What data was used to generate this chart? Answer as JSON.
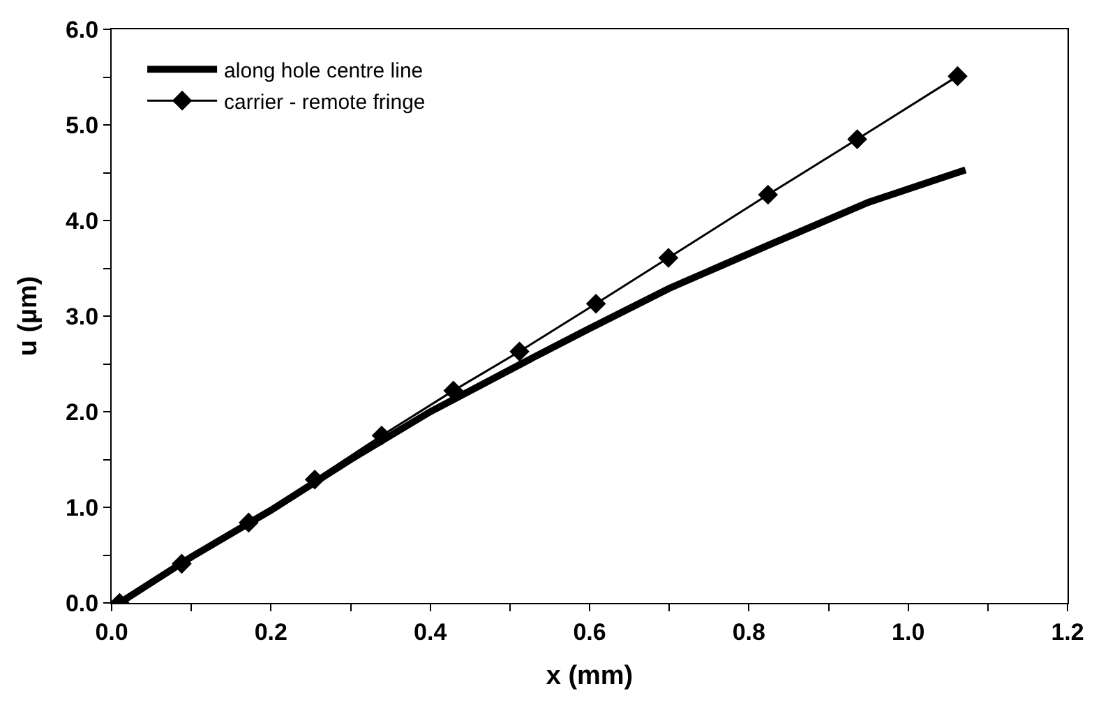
{
  "chart_data": {
    "type": "line",
    "xlabel": "x (mm)",
    "ylabel": "u (µm)",
    "xlim": [
      0,
      1.2
    ],
    "ylim": [
      0,
      6
    ],
    "xticks": [
      {
        "value": 0,
        "label": "0.0"
      },
      {
        "value": 0.1,
        "label": null
      },
      0.2,
      {
        "value": 0.3,
        "label": null
      },
      0.4,
      {
        "value": 0.5,
        "label": null
      },
      0.6,
      {
        "value": 0.7,
        "label": null
      },
      0.8,
      {
        "value": 0.9,
        "label": null
      },
      {
        "value": 1,
        "label": "1.0"
      },
      {
        "value": 1.1,
        "label": null
      },
      1.2
    ],
    "yticks": [
      {
        "value": 0,
        "label": "0.0"
      },
      {
        "value": 0.5,
        "label": null
      },
      {
        "value": 1,
        "label": "1.0"
      },
      {
        "value": 1.5,
        "label": null
      },
      {
        "value": 2,
        "label": "2.0"
      },
      {
        "value": 2.5,
        "label": null
      },
      {
        "value": 3,
        "label": "3.0"
      },
      {
        "value": 3.5,
        "label": null
      },
      {
        "value": 4,
        "label": "4.0"
      },
      {
        "value": 4.5,
        "label": null
      },
      {
        "value": 5,
        "label": "5.0"
      },
      {
        "value": 5.5,
        "label": null
      },
      {
        "value": 6,
        "label": "6.0"
      }
    ],
    "legend": "top left",
    "series": [
      {
        "name": "along hole centre line",
        "color": "#000000",
        "marker": "none",
        "x": [
          0.01,
          0.1,
          0.2,
          0.3,
          0.4,
          0.53,
          0.6,
          0.7,
          0.824,
          0.95,
          1.072
        ],
        "values": [
          0,
          0.48,
          0.97,
          1.5,
          2.0,
          2.57,
          2.87,
          3.29,
          3.74,
          4.19,
          4.53
        ]
      },
      {
        "name": "carrier - remote fringe",
        "color": "#000000",
        "marker": "diamond",
        "x": [
          0.01,
          0.088,
          0.172,
          0.255,
          0.339,
          0.429,
          0.512,
          0.608,
          0.699,
          0.824,
          0.936,
          1.062
        ],
        "values": [
          0,
          0.41,
          0.84,
          1.29,
          1.75,
          2.22,
          2.63,
          3.13,
          3.61,
          4.27,
          4.85,
          5.51
        ]
      }
    ]
  }
}
